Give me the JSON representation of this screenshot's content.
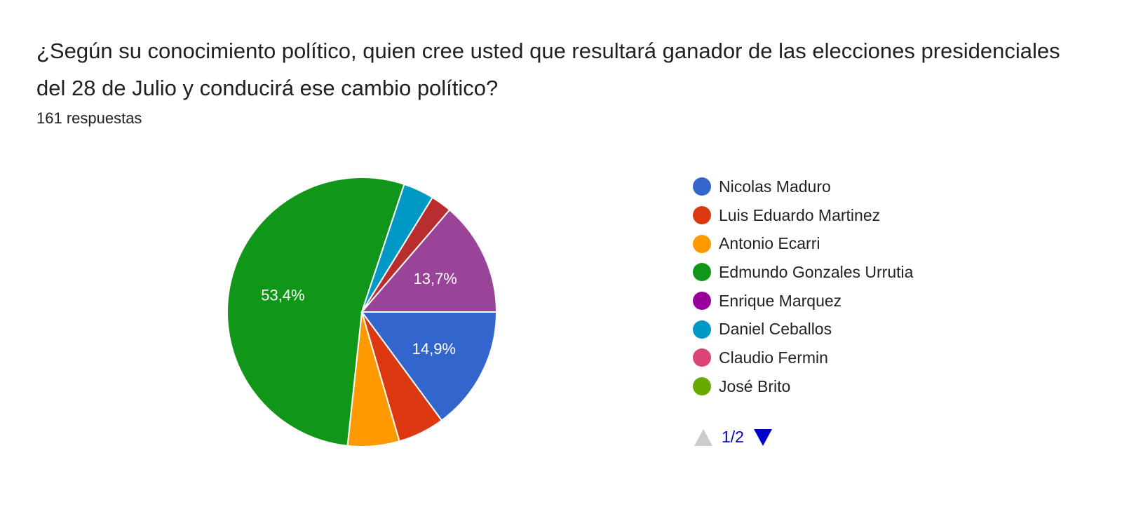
{
  "question_title": "¿Según su conocimiento político, quien cree usted que resultará ganador de las elecciones presidenciales del 28 de Julio y conducirá ese cambio político?",
  "response_count": "161 respuestas",
  "pager": {
    "text": "1/2"
  },
  "chart_data": {
    "type": "pie",
    "title": "",
    "slices": [
      {
        "name": "Nicolas Maduro",
        "value": 14.9,
        "color": "#3366cc",
        "label": "14,9%"
      },
      {
        "name": "Luis Eduardo Martinez",
        "value": 5.6,
        "color": "#dc3912",
        "label": ""
      },
      {
        "name": "Antonio Ecarri",
        "value": 6.2,
        "color": "#ff9900",
        "label": ""
      },
      {
        "name": "Edmundo Gonzales Urrutia",
        "value": 53.4,
        "color": "#109618",
        "label": "53,4%"
      },
      {
        "name": "Daniel Ceballos",
        "value": 3.7,
        "color": "#0099c6",
        "label": ""
      },
      {
        "name": "",
        "value": 2.5,
        "color": "#b82e2e",
        "label": ""
      },
      {
        "name": "Enrique Marquez",
        "value": 13.7,
        "color": "#994499",
        "label": "13,7%"
      }
    ],
    "legend": [
      {
        "name": "Nicolas Maduro",
        "color": "#3366cc"
      },
      {
        "name": "Luis Eduardo Martinez",
        "color": "#dc3912"
      },
      {
        "name": "Antonio Ecarri",
        "color": "#ff9900"
      },
      {
        "name": "Edmundo Gonzales Urrutia",
        "color": "#109618"
      },
      {
        "name": "Enrique Marquez",
        "color": "#990099"
      },
      {
        "name": "Daniel Ceballos",
        "color": "#0099c6"
      },
      {
        "name": "Claudio Fermin",
        "color": "#dd4477"
      },
      {
        "name": "José Brito",
        "color": "#66aa00"
      }
    ],
    "legend_position": "right"
  }
}
